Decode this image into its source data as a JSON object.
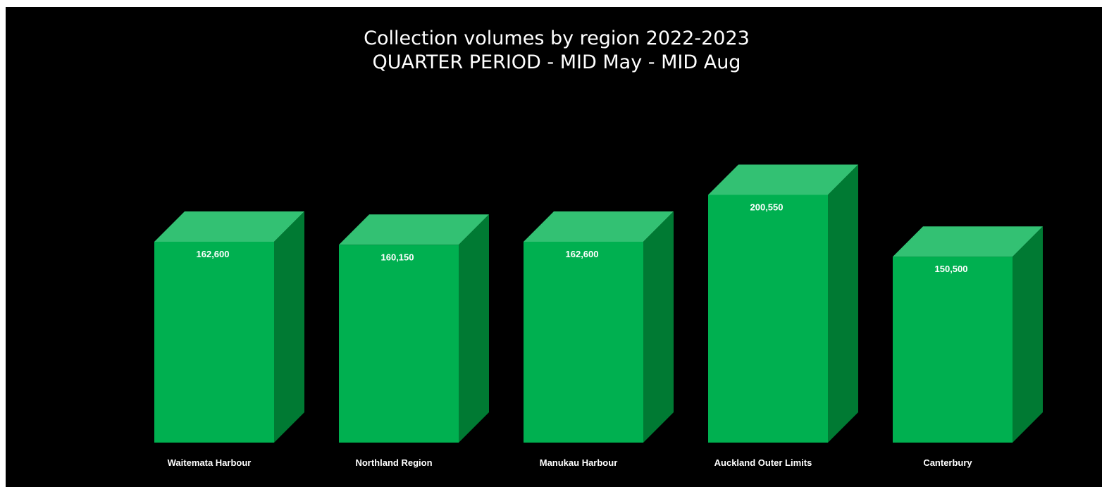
{
  "chart_data": {
    "type": "bar",
    "title_line1": "Collection volumes by region 2022-2023",
    "title_line2": "QUARTER PERIOD - MID May  - MID Aug",
    "categories": [
      "Waitemata Harbour",
      "Northland Region",
      "Manukau Harbour",
      "Auckland Outer Limits",
      "Canterbury"
    ],
    "values": [
      162600,
      160150,
      162600,
      200550,
      150500
    ],
    "value_labels": [
      "162,600",
      "160,150",
      "162,600",
      "200,550",
      "150,500"
    ],
    "style": "3d-column",
    "colors": {
      "front": "#00B050",
      "top": "#33C173",
      "side": "#007A33",
      "background": "#000000",
      "text": "#FFFFFF"
    },
    "grid": false,
    "legend": "none"
  }
}
